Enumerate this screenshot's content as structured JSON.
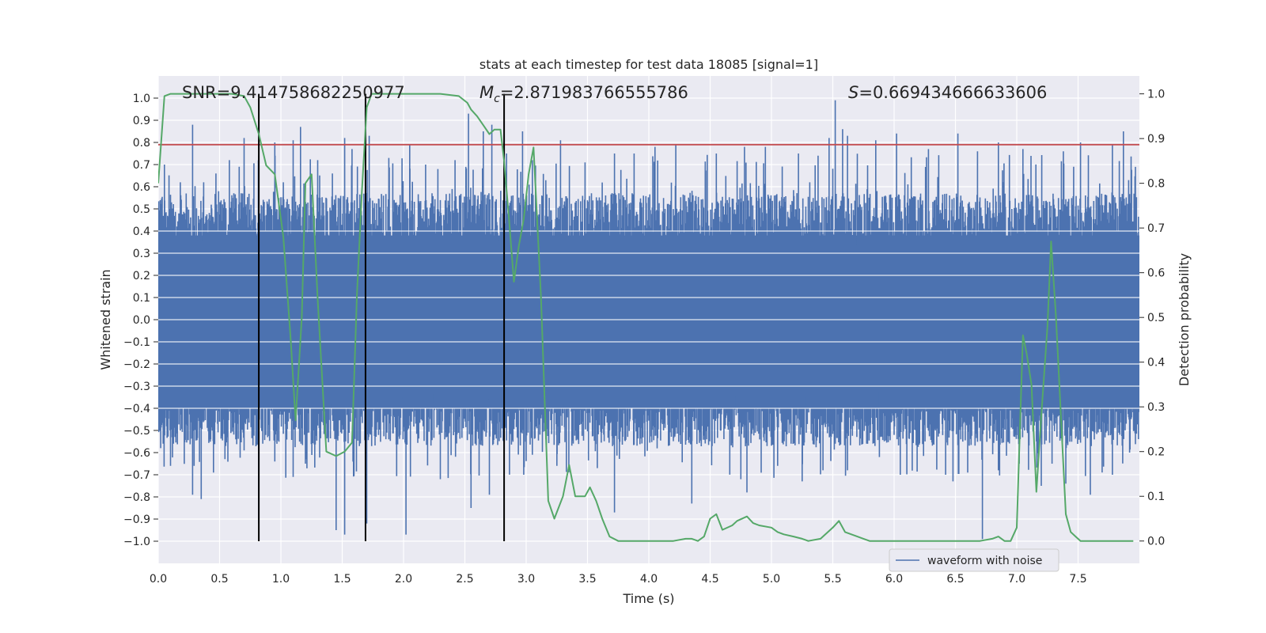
{
  "chart_data": {
    "type": "line",
    "title": "stats at each timestep for test data 18085 [signal=1]",
    "xlabel": "Time (s)",
    "ylabel": "Whitened strain",
    "y2label": "Detection probability",
    "xlim": [
      0.0,
      8.0
    ],
    "ylim": [
      -1.1,
      1.1
    ],
    "y2lim": [
      -0.05,
      1.04
    ],
    "xticks": [
      "0.0",
      "0.5",
      "1.0",
      "1.5",
      "2.0",
      "2.5",
      "3.0",
      "3.5",
      "4.0",
      "4.5",
      "5.0",
      "5.5",
      "6.0",
      "6.5",
      "7.0",
      "7.5"
    ],
    "yticks": [
      "1.0",
      "0.9",
      "0.8",
      "0.7",
      "0.6",
      "0.5",
      "0.4",
      "0.3",
      "0.2",
      "0.1",
      "0.0",
      "−0.1",
      "−0.2",
      "−0.3",
      "−0.4",
      "−0.5",
      "−0.6",
      "−0.7",
      "−0.8",
      "−0.9",
      "−1.0"
    ],
    "y2ticks": [
      "1.0",
      "0.9",
      "0.8",
      "0.7",
      "0.6",
      "0.5",
      "0.4",
      "0.3",
      "0.2",
      "0.1",
      "0.0"
    ],
    "annotations": {
      "snr": "SNR=9.414758682250977",
      "mc": "=2.871983766555786",
      "mc_symbol": "M",
      "mc_sub": "c",
      "s": "=0.669434666633606",
      "s_symbol": "S"
    },
    "threshold": 0.79,
    "vlines": [
      0.82,
      1.69,
      2.82
    ],
    "legend": {
      "position": "lower-right",
      "label": "waveform with noise"
    },
    "series": [
      {
        "name": "waveform with noise",
        "color": "#4c72b0",
        "axis": "left",
        "envelope": {
          "typical_upper": 0.45,
          "typical_lower": -0.45,
          "peaks_x": [
            0.05,
            0.18,
            0.28,
            0.37,
            0.47,
            0.58,
            0.66,
            0.7,
            0.82,
            0.95,
            1.02,
            1.1,
            1.16,
            1.3,
            1.42,
            1.52,
            1.58,
            1.72,
            1.88,
            2.05,
            2.18,
            2.28,
            2.42,
            2.53,
            2.65,
            2.72,
            2.84,
            2.97,
            3.05,
            3.28,
            3.48,
            3.72,
            3.88,
            4.05,
            4.22,
            4.55,
            4.78,
            4.95,
            5.22,
            5.38,
            5.47,
            5.52,
            5.58,
            5.62,
            5.85,
            6.02,
            6.28,
            6.52,
            6.68,
            6.85,
            7.05,
            7.38,
            7.52,
            7.78,
            7.87
          ],
          "peaks_y": [
            0.7,
            0.62,
            0.88,
            0.62,
            0.66,
            0.72,
            0.69,
            0.82,
            0.74,
            0.8,
            0.62,
            0.81,
            0.87,
            0.72,
            0.66,
            0.82,
            0.77,
            0.83,
            0.73,
            0.79,
            0.7,
            0.68,
            0.72,
            0.93,
            0.85,
            0.88,
            0.75,
            0.85,
            0.72,
            0.81,
            0.71,
            0.75,
            0.75,
            0.78,
            0.79,
            0.75,
            0.78,
            0.78,
            0.75,
            0.74,
            0.82,
            0.99,
            0.86,
            0.83,
            0.81,
            0.84,
            0.77,
            0.84,
            0.76,
            0.8,
            0.77,
            0.76,
            0.8,
            0.79,
            0.85
          ],
          "troughs_x": [
            0.02,
            0.1,
            0.28,
            0.35,
            0.45,
            0.55,
            0.7,
            0.82,
            0.95,
            1.1,
            1.2,
            1.45,
            1.52,
            1.7,
            2.02,
            2.3,
            2.55,
            2.7,
            2.98,
            3.05,
            3.25,
            3.58,
            3.72,
            4.35,
            4.75,
            4.8,
            5.05,
            5.25,
            5.42,
            5.62,
            5.88,
            6.05,
            6.48,
            6.6,
            6.72,
            6.85,
            7.02,
            7.2,
            7.4,
            7.6,
            7.78,
            7.92
          ],
          "troughs_y": [
            -0.58,
            -0.66,
            -0.79,
            -0.81,
            -0.69,
            -0.57,
            -0.59,
            -0.92,
            -0.64,
            -0.71,
            -0.65,
            -0.95,
            -0.97,
            -0.92,
            -0.97,
            -0.72,
            -0.85,
            -0.79,
            -0.7,
            -0.61,
            -0.66,
            -0.67,
            -0.87,
            -0.83,
            -0.72,
            -0.78,
            -0.66,
            -0.73,
            -0.68,
            -0.68,
            -0.62,
            -0.7,
            -0.73,
            -0.69,
            -0.99,
            -0.68,
            -0.65,
            -0.75,
            -0.74,
            -0.79,
            -0.7,
            -0.6
          ]
        }
      },
      {
        "name": "detection probability",
        "color": "#55a868",
        "axis": "right",
        "x": [
          0.0,
          0.05,
          0.1,
          0.2,
          0.3,
          0.4,
          0.5,
          0.6,
          0.7,
          0.75,
          0.82,
          0.88,
          0.95,
          1.02,
          1.08,
          1.12,
          1.17,
          1.2,
          1.25,
          1.3,
          1.37,
          1.45,
          1.52,
          1.58,
          1.62,
          1.66,
          1.7,
          1.74,
          1.8,
          1.9,
          2.0,
          2.1,
          2.3,
          2.45,
          2.52,
          2.55,
          2.6,
          2.65,
          2.7,
          2.74,
          2.79,
          2.82,
          2.86,
          2.9,
          2.94,
          2.98,
          3.02,
          3.06,
          3.12,
          3.18,
          3.23,
          3.3,
          3.35,
          3.4,
          3.48,
          3.52,
          3.57,
          3.62,
          3.68,
          3.75,
          3.9,
          4.0,
          4.2,
          4.3,
          4.35,
          4.4,
          4.45,
          4.5,
          4.55,
          4.6,
          4.68,
          4.72,
          4.8,
          4.85,
          4.9,
          5.0,
          5.05,
          5.1,
          5.18,
          5.25,
          5.3,
          5.4,
          5.5,
          5.55,
          5.6,
          5.7,
          5.75,
          5.8,
          5.9,
          6.0,
          6.2,
          6.5,
          6.7,
          6.8,
          6.85,
          6.9,
          6.95,
          7.0,
          7.05,
          7.08,
          7.12,
          7.16,
          7.2,
          7.25,
          7.28,
          7.32,
          7.36,
          7.4,
          7.44,
          7.48,
          7.52,
          7.58,
          7.64,
          7.7,
          7.75,
          7.85,
          7.95
        ],
        "y": [
          0.8,
          0.995,
          1.0,
          1.0,
          1.0,
          1.0,
          1.0,
          1.0,
          0.995,
          0.97,
          0.91,
          0.84,
          0.82,
          0.68,
          0.45,
          0.27,
          0.5,
          0.8,
          0.82,
          0.54,
          0.2,
          0.19,
          0.2,
          0.22,
          0.55,
          0.78,
          0.97,
          1.0,
          1.0,
          1.0,
          1.0,
          1.0,
          1.0,
          0.995,
          0.98,
          0.965,
          0.95,
          0.93,
          0.91,
          0.92,
          0.92,
          0.85,
          0.72,
          0.58,
          0.66,
          0.72,
          0.82,
          0.88,
          0.55,
          0.09,
          0.05,
          0.1,
          0.17,
          0.1,
          0.1,
          0.12,
          0.09,
          0.05,
          0.01,
          0.0,
          0.0,
          0.0,
          0.0,
          0.005,
          0.005,
          0.0,
          0.01,
          0.05,
          0.06,
          0.025,
          0.035,
          0.045,
          0.055,
          0.04,
          0.035,
          0.03,
          0.02,
          0.015,
          0.01,
          0.005,
          0.0,
          0.005,
          0.03,
          0.045,
          0.02,
          0.01,
          0.005,
          0.0,
          0.0,
          0.0,
          0.0,
          0.0,
          0.0,
          0.005,
          0.01,
          0.0,
          0.0,
          0.03,
          0.46,
          0.42,
          0.35,
          0.11,
          0.28,
          0.48,
          0.67,
          0.5,
          0.28,
          0.06,
          0.02,
          0.01,
          0.0,
          0.0,
          0.0,
          0.0,
          0.0,
          0.0,
          0.0
        ]
      }
    ]
  }
}
